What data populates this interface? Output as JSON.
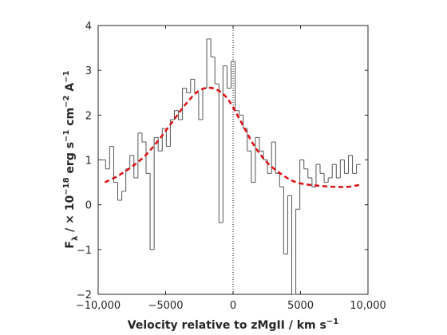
{
  "chart_data": {
    "type": "step",
    "xlabel_parts": [
      "Velocity relative to zMgII / km s",
      "−1"
    ],
    "ylabel_parts": [
      "F",
      "λ",
      " / × 10",
      "−18",
      " erg s",
      "−1",
      " cm",
      "−2",
      " A",
      "−1"
    ],
    "xlim": [
      -10000,
      10000
    ],
    "xticks": [
      {
        "value": -10000,
        "label": "−10,000"
      },
      {
        "value": -5000,
        "label": "−5000"
      },
      0,
      5000,
      {
        "value": 10000,
        "label": "10,000"
      }
    ],
    "ylim": [
      -2,
      4
    ],
    "yticks": [
      {
        "value": -2,
        "label": "−2"
      },
      {
        "value": -1,
        "label": "−1"
      },
      0,
      1,
      2,
      3,
      4
    ],
    "vline": 0,
    "series": [
      {
        "color": "#555555",
        "style": "step",
        "x": [
          -9600,
          -9300,
          -9000,
          -8700,
          -8400,
          -8100,
          -7800,
          -7500,
          -7200,
          -6900,
          -6600,
          -6300,
          -6000,
          -5700,
          -5400,
          -5100,
          -4800,
          -4500,
          -4200,
          -3900,
          -3600,
          -3300,
          -3000,
          -2700,
          -2400,
          -2100,
          -1800,
          -1500,
          -1200,
          -900,
          -600,
          -300,
          0,
          300,
          600,
          900,
          1200,
          1500,
          1800,
          2100,
          2400,
          2700,
          3000,
          3300,
          3600,
          3900,
          4200,
          4500,
          4800,
          5100,
          5400,
          5700,
          6000,
          6300,
          6600,
          6900,
          7200,
          7500,
          7800,
          8100,
          8400,
          8700,
          9000,
          9300
        ],
        "values": [
          1.0,
          0.8,
          1.3,
          0.5,
          0.1,
          0.3,
          0.8,
          1.1,
          0.6,
          1.6,
          1.4,
          0.7,
          -1.0,
          1.5,
          1.2,
          1.7,
          1.3,
          1.9,
          2.1,
          1.9,
          2.6,
          2.5,
          2.8,
          2.5,
          1.9,
          2.6,
          3.7,
          3.3,
          2.7,
          -0.4,
          3.1,
          2.6,
          3.2,
          2.1,
          2.0,
          1.7,
          1.2,
          0.5,
          1.5,
          1.2,
          1.0,
          0.7,
          1.4,
          0.7,
          0.4,
          -1.1,
          0.2,
          -2.0,
          -0.1,
          1.0,
          0.8,
          0.6,
          0.4,
          0.9,
          0.7,
          0.5,
          0.6,
          0.9,
          0.6,
          1.0,
          0.7,
          1.1,
          0.7,
          0.9
        ]
      },
      {
        "color": "#dd1111",
        "style": "dashed",
        "x": [
          -9500,
          -8500,
          -7500,
          -6500,
          -5500,
          -4500,
          -3500,
          -2500,
          -1500,
          -500,
          500,
          1500,
          2500,
          3500,
          4500,
          5500,
          6500,
          7500,
          8500,
          9500
        ],
        "values": [
          0.5,
          0.65,
          0.85,
          1.1,
          1.45,
          1.85,
          2.25,
          2.55,
          2.6,
          2.4,
          1.9,
          1.35,
          0.95,
          0.7,
          0.52,
          0.45,
          0.42,
          0.4,
          0.4,
          0.45
        ]
      }
    ]
  }
}
